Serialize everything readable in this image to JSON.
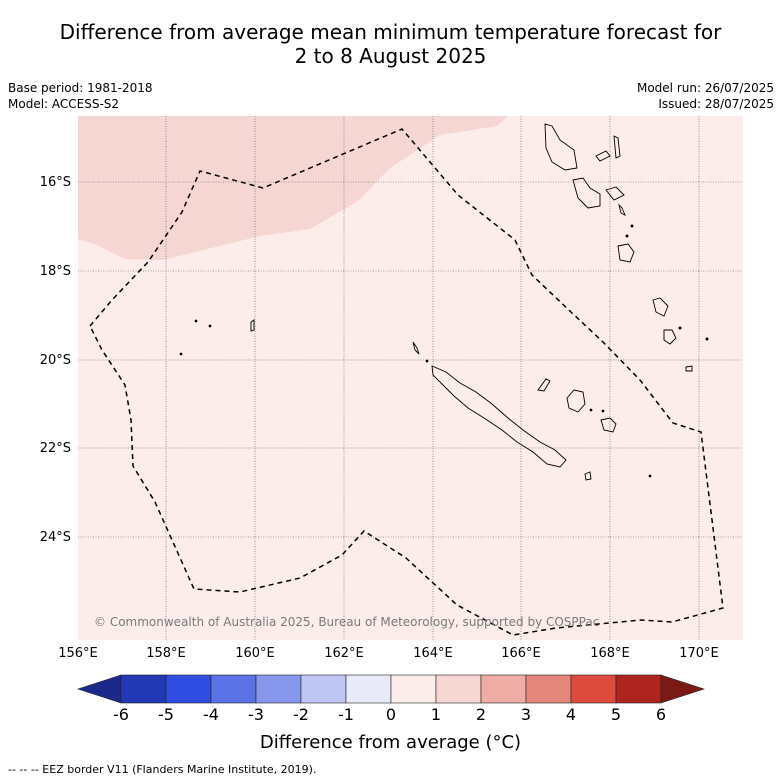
{
  "title_line1": "Difference from average mean minimum temperature forecast for",
  "title_line2": "2 to 8 August 2025",
  "base_period": "Base period: 1981-2018",
  "model": "Model: ACCESS-S2",
  "model_run": "Model run: 26/07/2025",
  "issued": "Issued: 28/07/2025",
  "copyright": "© Commonwealth of Australia 2025, Bureau of Meteorology, supported by COSPPac",
  "lat_ticks": [
    "16°S",
    "18°S",
    "20°S",
    "22°S",
    "24°S"
  ],
  "lon_ticks": [
    "156°E",
    "158°E",
    "160°E",
    "162°E",
    "164°E",
    "166°E",
    "168°E",
    "170°E"
  ],
  "legend": {
    "title": "Difference from average (°C)",
    "ticks": [
      "-6",
      "-5",
      "-4",
      "-3",
      "-2",
      "-1",
      "0",
      "1",
      "2",
      "3",
      "4",
      "5",
      "6"
    ],
    "colors": [
      "#1b2a8a",
      "#2338b4",
      "#2f4de0",
      "#5a72e6",
      "#8797ec",
      "#c0c6f4",
      "#e8eaf9",
      "#fcecea",
      "#f5d6d2",
      "#eeaca4",
      "#e5867d",
      "#dd4b3e",
      "#ae2520",
      "#7a1a14"
    ]
  },
  "map_colors": {
    "background_anomaly_0_1": "#fcecea",
    "anomaly_1_2": "#f5d6d2",
    "eez_border": "#000000"
  },
  "footnote": "-- -- -- EEZ border V11 (Flanders Marine Institute, 2019)."
}
